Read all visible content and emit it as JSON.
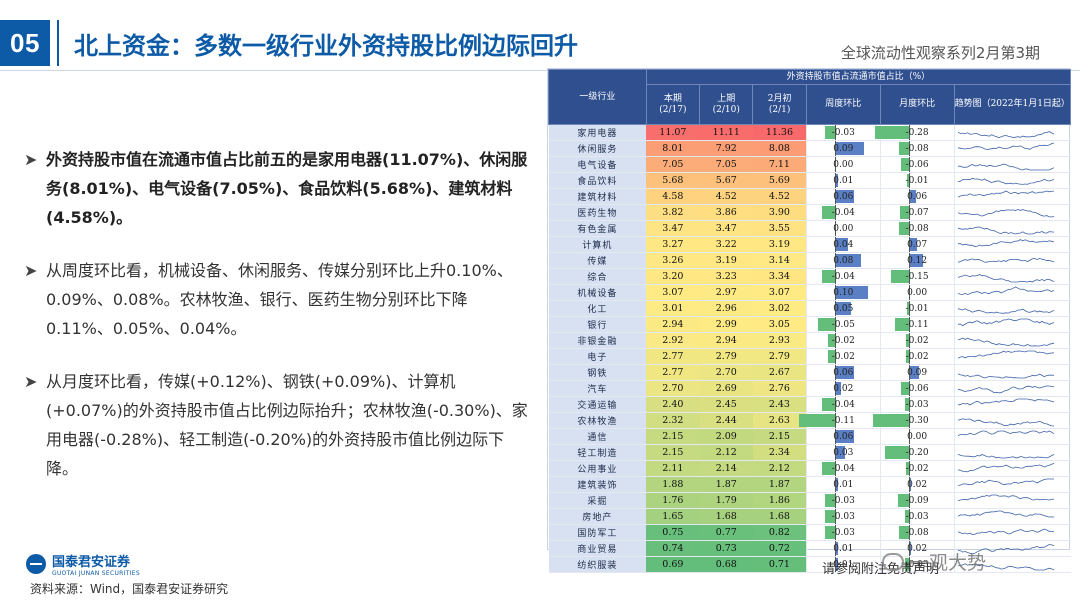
{
  "header": {
    "number": "05",
    "title": "北上资金：多数一级行业外资持股比例边际回升",
    "series": "全球流动性观察系列2月第3期"
  },
  "bullets": [
    "外资持股市值在流通市值占比前五的是家用电器(11.07%)、休闲服务(8.01%)、电气设备(7.05%)、食品饮料(5.68%)、建筑材料(4.58%)。",
    "从周度环比看，机械设备、休闲服务、传媒分别环比上升0.10%、0.09%、0.08%。农林牧渔、银行、医药生物分别环比下降0.11%、0.05%、0.04%。",
    "从月度环比看，传媒(+0.12%)、钢铁(+0.09%)、计算机(+0.07%)的外资持股市值占比例边际抬升；农林牧渔(-0.30%)、家用电器(-0.28%)、轻工制造(-0.20%)的外资持股市值比例边际下降。"
  ],
  "footer": {
    "logo_cn": "国泰君安证券",
    "logo_en": "GUOTAI JUNAN SECURITIES",
    "source": "资料来源：Wind，国泰君安证券研究",
    "note": "请参阅附注免责声明",
    "watermark": "一观大势"
  },
  "table": {
    "col_industry": "一级行业",
    "group_header": "外资持股市值占流通市值占比（%）",
    "headers": [
      "本期\n(2/17)",
      "上期\n(2/10)",
      "2月初\n(2/1)",
      "周度环比",
      "月度环比",
      "趋势图（2022年1月1日起）"
    ],
    "colors": {
      "red": "#f8696b",
      "yellow": "#ffeb84",
      "green": "#63be7b",
      "pos_bar": "#5b7fc4",
      "neg_bar": "#63be7b"
    },
    "rows": [
      {
        "name": "家用电器",
        "cur": "11.07",
        "prev": "11.11",
        "feb": "11.36",
        "wk": "-0.03",
        "mo": "-0.28"
      },
      {
        "name": "休闲服务",
        "cur": "8.01",
        "prev": "7.92",
        "feb": "8.08",
        "wk": "0.09",
        "mo": "-0.08"
      },
      {
        "name": "电气设备",
        "cur": "7.05",
        "prev": "7.05",
        "feb": "7.11",
        "wk": "0.00",
        "mo": "-0.06"
      },
      {
        "name": "食品饮料",
        "cur": "5.68",
        "prev": "5.67",
        "feb": "5.69",
        "wk": "0.01",
        "mo": "-0.01"
      },
      {
        "name": "建筑材料",
        "cur": "4.58",
        "prev": "4.52",
        "feb": "4.52",
        "wk": "0.06",
        "mo": "0.06"
      },
      {
        "name": "医药生物",
        "cur": "3.82",
        "prev": "3.86",
        "feb": "3.90",
        "wk": "-0.04",
        "mo": "-0.07"
      },
      {
        "name": "有色金属",
        "cur": "3.47",
        "prev": "3.47",
        "feb": "3.55",
        "wk": "0.00",
        "mo": "-0.08"
      },
      {
        "name": "计算机",
        "cur": "3.27",
        "prev": "3.22",
        "feb": "3.19",
        "wk": "0.04",
        "mo": "0.07"
      },
      {
        "name": "传媒",
        "cur": "3.26",
        "prev": "3.19",
        "feb": "3.14",
        "wk": "0.08",
        "mo": "0.12"
      },
      {
        "name": "综合",
        "cur": "3.20",
        "prev": "3.23",
        "feb": "3.34",
        "wk": "-0.04",
        "mo": "-0.15"
      },
      {
        "name": "机械设备",
        "cur": "3.07",
        "prev": "2.97",
        "feb": "3.07",
        "wk": "0.10",
        "mo": "0.00"
      },
      {
        "name": "化工",
        "cur": "3.01",
        "prev": "2.96",
        "feb": "3.02",
        "wk": "0.05",
        "mo": "-0.01"
      },
      {
        "name": "银行",
        "cur": "2.94",
        "prev": "2.99",
        "feb": "3.05",
        "wk": "-0.05",
        "mo": "-0.11"
      },
      {
        "name": "非银金融",
        "cur": "2.92",
        "prev": "2.94",
        "feb": "2.93",
        "wk": "-0.02",
        "mo": "-0.02"
      },
      {
        "name": "电子",
        "cur": "2.77",
        "prev": "2.79",
        "feb": "2.79",
        "wk": "-0.02",
        "mo": "-0.02"
      },
      {
        "name": "钢铁",
        "cur": "2.77",
        "prev": "2.70",
        "feb": "2.67",
        "wk": "0.06",
        "mo": "0.09"
      },
      {
        "name": "汽车",
        "cur": "2.70",
        "prev": "2.69",
        "feb": "2.76",
        "wk": "0.02",
        "mo": "-0.06"
      },
      {
        "name": "交通运输",
        "cur": "2.40",
        "prev": "2.45",
        "feb": "2.43",
        "wk": "-0.04",
        "mo": "-0.03"
      },
      {
        "name": "农林牧渔",
        "cur": "2.32",
        "prev": "2.44",
        "feb": "2.63",
        "wk": "-0.11",
        "mo": "-0.30"
      },
      {
        "name": "通信",
        "cur": "2.15",
        "prev": "2.09",
        "feb": "2.15",
        "wk": "0.06",
        "mo": "0.00"
      },
      {
        "name": "轻工制造",
        "cur": "2.15",
        "prev": "2.12",
        "feb": "2.34",
        "wk": "0.03",
        "mo": "-0.20"
      },
      {
        "name": "公用事业",
        "cur": "2.11",
        "prev": "2.14",
        "feb": "2.12",
        "wk": "-0.04",
        "mo": "-0.02"
      },
      {
        "name": "建筑装饰",
        "cur": "1.88",
        "prev": "1.87",
        "feb": "1.87",
        "wk": "0.01",
        "mo": "0.02"
      },
      {
        "name": "采掘",
        "cur": "1.76",
        "prev": "1.79",
        "feb": "1.86",
        "wk": "-0.03",
        "mo": "-0.09"
      },
      {
        "name": "房地产",
        "cur": "1.65",
        "prev": "1.68",
        "feb": "1.68",
        "wk": "-0.03",
        "mo": "-0.03"
      },
      {
        "name": "国防军工",
        "cur": "0.75",
        "prev": "0.77",
        "feb": "0.82",
        "wk": "-0.03",
        "mo": "-0.08"
      },
      {
        "name": "商业贸易",
        "cur": "0.74",
        "prev": "0.73",
        "feb": "0.72",
        "wk": "0.01",
        "mo": "0.02"
      },
      {
        "name": "纺织服装",
        "cur": "0.69",
        "prev": "0.68",
        "feb": "0.71",
        "wk": "0.01",
        "mo": "-0.03"
      }
    ]
  }
}
